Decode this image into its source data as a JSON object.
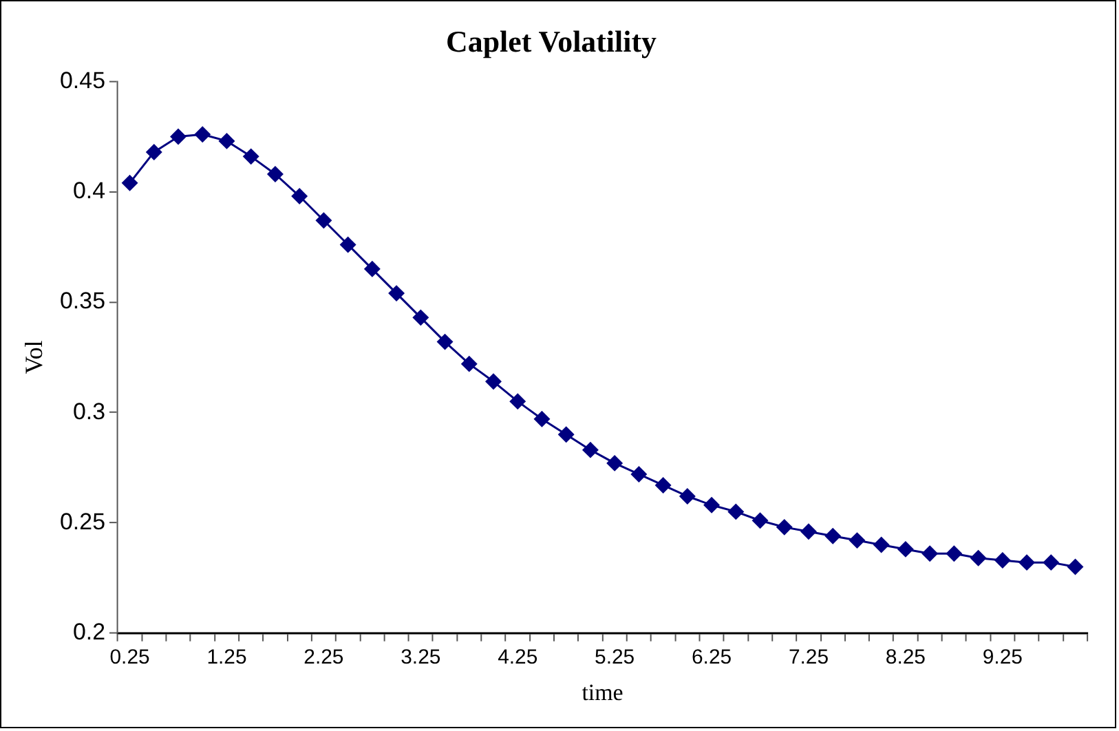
{
  "chart_data": {
    "type": "line",
    "title": "Caplet Volatility",
    "xlabel": "time",
    "ylabel": "Vol",
    "categories": [
      "0.25",
      null,
      null,
      null,
      "1.25",
      null,
      null,
      null,
      "2.25",
      null,
      null,
      null,
      "3.25",
      null,
      null,
      null,
      "4.25",
      null,
      null,
      null,
      "5.25",
      null,
      null,
      null,
      "6.25",
      null,
      null,
      null,
      "7.25",
      null,
      null,
      null,
      "8.25",
      null,
      null,
      null,
      "9.25",
      null,
      null,
      null
    ],
    "series": [
      {
        "color": "#000080",
        "values": [
          0.404,
          0.418,
          0.425,
          0.426,
          0.423,
          0.416,
          0.408,
          0.398,
          0.387,
          0.376,
          0.365,
          0.354,
          0.343,
          0.332,
          0.322,
          0.314,
          0.305,
          0.297,
          0.29,
          0.283,
          0.277,
          0.272,
          0.267,
          0.262,
          0.258,
          0.255,
          0.251,
          0.248,
          0.246,
          0.244,
          0.242,
          0.24,
          0.238,
          0.236,
          0.236,
          0.234,
          0.233,
          0.232,
          0.232,
          0.23
        ]
      }
    ],
    "ylim": [
      0.2,
      0.45
    ],
    "yticks": [
      0.2,
      0.25,
      0.3,
      0.35,
      0.4,
      0.45
    ],
    "grid": false,
    "legend": false,
    "marker": "diamond",
    "line_style": "solid"
  }
}
